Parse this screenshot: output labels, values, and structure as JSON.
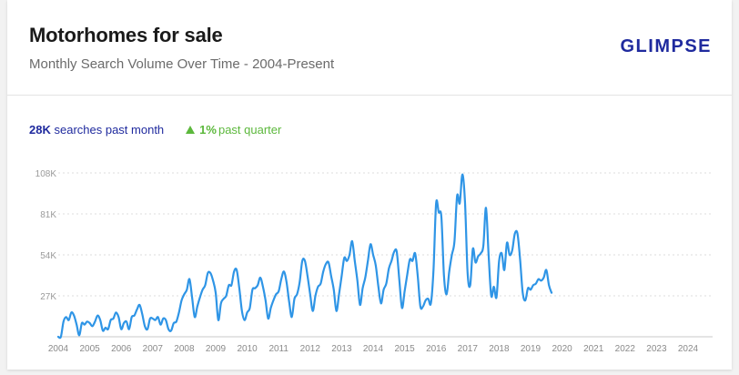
{
  "header": {
    "title": "Motorhomes for sale",
    "subtitle": "Monthly Search Volume Over Time - 2004-Present",
    "logo": "GLIMPSE"
  },
  "stats": {
    "monthly_value": "28K",
    "monthly_label": "searches past month",
    "quarter_value": "1%",
    "quarter_label": "past quarter",
    "quarter_trend": "up"
  },
  "colors": {
    "line": "#2f95e6",
    "brand": "#1f2a9e",
    "positive": "#5cb83c"
  },
  "chart_data": {
    "type": "line",
    "title": "",
    "xlabel": "",
    "ylabel": "",
    "grid": true,
    "ylim": [
      0,
      108000
    ],
    "y_ticks": [
      {
        "value": 27000,
        "label": "27K"
      },
      {
        "value": 54000,
        "label": "54K"
      },
      {
        "value": 81000,
        "label": "81K"
      },
      {
        "value": 108000,
        "label": "108K"
      }
    ],
    "x_ticks": [
      "2004",
      "2005",
      "2006",
      "2007",
      "2008",
      "2009",
      "2010",
      "2011",
      "2012",
      "2013",
      "2014",
      "2015",
      "2016",
      "2017",
      "2018",
      "2019",
      "2020",
      "2021",
      "2022",
      "2023",
      "2024"
    ],
    "x_start": "2004-01",
    "x_end": "2024-09",
    "series": [
      {
        "values": [
          0,
          0,
          10000,
          13000,
          11000,
          16000,
          14000,
          8000,
          1000,
          9000,
          8000,
          10000,
          9000,
          7000,
          10000,
          14000,
          11000,
          4000,
          6000,
          5000,
          11000,
          12000,
          16000,
          13000,
          5000,
          9000,
          10000,
          5000,
          13000,
          14000,
          18000,
          21000,
          15000,
          7000,
          5000,
          12000,
          12000,
          11000,
          13000,
          8000,
          12000,
          11000,
          5000,
          4000,
          9000,
          10000,
          16000,
          24000,
          28000,
          31000,
          38000,
          26000,
          13000,
          20000,
          26000,
          31000,
          34000,
          42000,
          42000,
          37000,
          29000,
          11000,
          22000,
          25000,
          27000,
          34000,
          34000,
          43000,
          44000,
          32000,
          17000,
          11000,
          16000,
          19000,
          31000,
          32000,
          34000,
          39000,
          33000,
          24000,
          12000,
          19000,
          24000,
          28000,
          30000,
          38000,
          43000,
          36000,
          23000,
          13000,
          25000,
          28000,
          36000,
          50000,
          50000,
          40000,
          28000,
          17000,
          27000,
          33000,
          35000,
          43000,
          48000,
          49000,
          40000,
          31000,
          17000,
          28000,
          40000,
          52000,
          50000,
          54000,
          63000,
          50000,
          37000,
          21000,
          32000,
          39000,
          50000,
          61000,
          54000,
          47000,
          33000,
          22000,
          31000,
          35000,
          45000,
          50000,
          56000,
          56000,
          37000,
          19000,
          30000,
          41000,
          51000,
          50000,
          55000,
          40000,
          20000,
          20000,
          24000,
          25000,
          22000,
          44000,
          88000,
          82000,
          79000,
          40000,
          28000,
          43000,
          54000,
          63000,
          93000,
          88000,
          107000,
          89000,
          42000,
          34000,
          58000,
          49000,
          53000,
          55000,
          60000,
          85000,
          54000,
          27000,
          33000,
          26000,
          50000,
          55000,
          44000,
          62000,
          54000,
          57000,
          68000,
          68000,
          51000,
          29000,
          24000,
          32000,
          31000,
          34000,
          35000,
          38000,
          37000,
          39000,
          44000,
          34000,
          29000
        ]
      }
    ]
  }
}
